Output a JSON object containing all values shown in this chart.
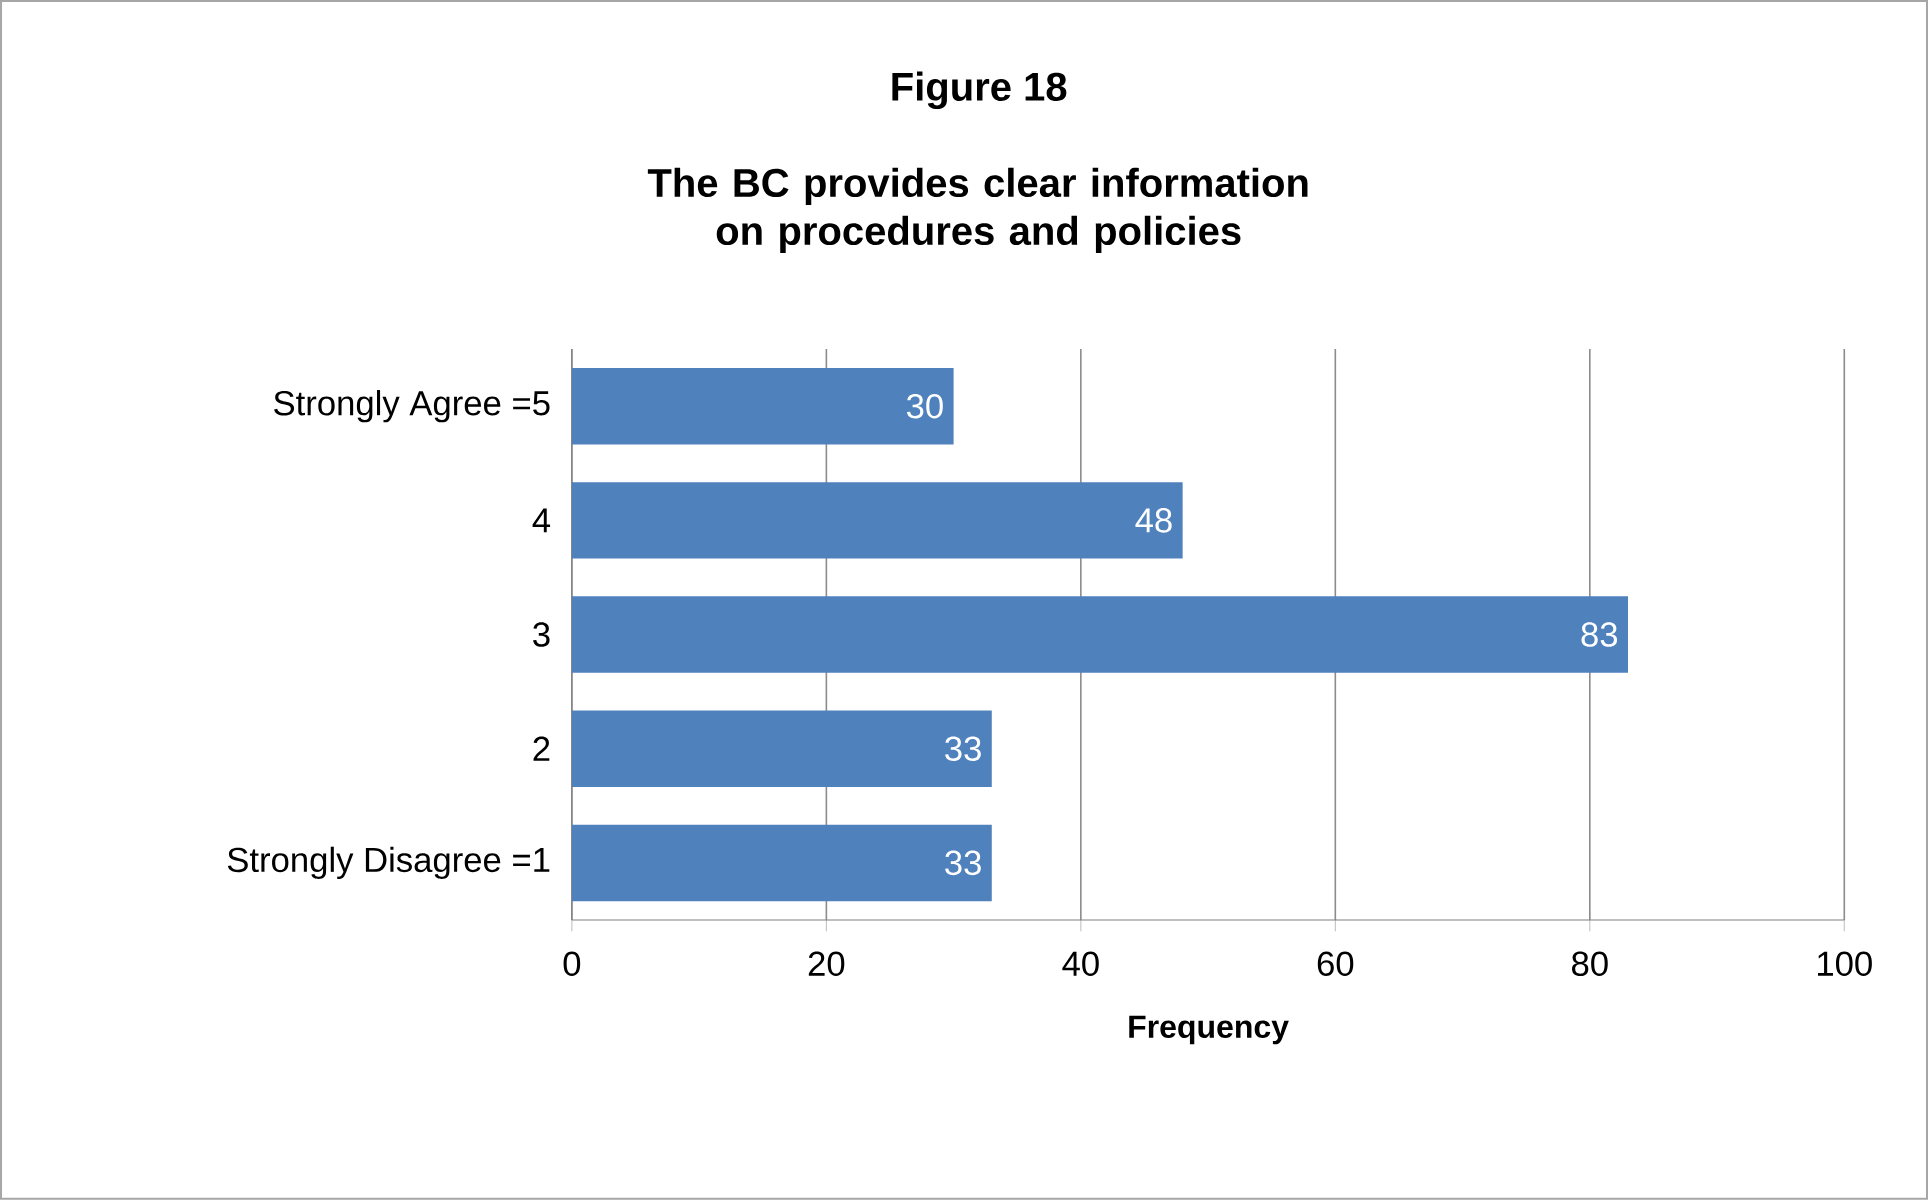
{
  "chart_data": {
    "type": "bar",
    "orientation": "horizontal",
    "title": "Figure 18",
    "subtitle": "The BC provides clear information on procedures and policies",
    "categories": [
      "Strongly Agree =5",
      "4",
      "3",
      "2",
      "Strongly Disagree =1"
    ],
    "values": [
      30,
      48,
      83,
      33,
      33
    ],
    "color": "#4f81bd",
    "xlim": [
      0,
      100
    ],
    "xticks": [
      0,
      20,
      40,
      60,
      80,
      100
    ],
    "xlabel": "Frequency",
    "grid": "x",
    "data_labels": true
  }
}
